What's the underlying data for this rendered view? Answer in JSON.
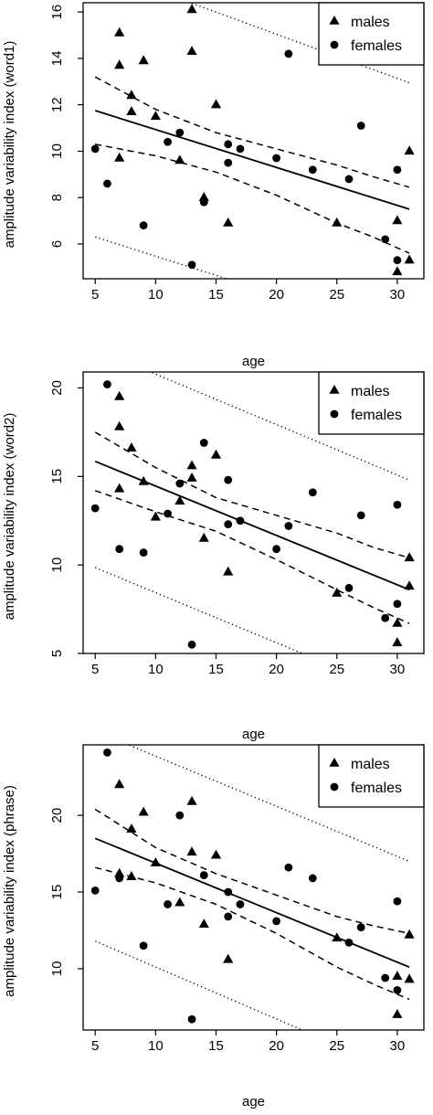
{
  "chart_data": [
    {
      "type": "scatter",
      "panel": "word1",
      "xlabel": "age",
      "ylabel": "amplitude variability index (word1)",
      "xlim": [
        4.0,
        32.2
      ],
      "ylim": [
        4.5,
        16.4
      ],
      "x_ticks": [
        5,
        10,
        15,
        20,
        25,
        30
      ],
      "y_ticks": [
        6,
        8,
        10,
        12,
        14,
        16
      ],
      "legend": {
        "position": "top-right",
        "entries": [
          "males",
          "females"
        ]
      },
      "series": [
        {
          "name": "males",
          "marker": "triangle",
          "points": [
            [
              7,
              15.1
            ],
            [
              7,
              13.7
            ],
            [
              7,
              9.7
            ],
            [
              8,
              12.4
            ],
            [
              8,
              11.7
            ],
            [
              9,
              13.9
            ],
            [
              10,
              11.5
            ],
            [
              12,
              9.6
            ],
            [
              13,
              16.1
            ],
            [
              13,
              14.3
            ],
            [
              14,
              8.0
            ],
            [
              15,
              12.0
            ],
            [
              16,
              6.9
            ],
            [
              25,
              6.9
            ],
            [
              30,
              7.0
            ],
            [
              30,
              4.8
            ],
            [
              31,
              10.0
            ],
            [
              31,
              5.3
            ]
          ]
        },
        {
          "name": "females",
          "marker": "circle",
          "points": [
            [
              5,
              10.1
            ],
            [
              6,
              8.6
            ],
            [
              9,
              6.8
            ],
            [
              11,
              10.4
            ],
            [
              12,
              10.8
            ],
            [
              13,
              5.1
            ],
            [
              14,
              7.8
            ],
            [
              16,
              10.3
            ],
            [
              16,
              9.5
            ],
            [
              17,
              10.1
            ],
            [
              20,
              9.7
            ],
            [
              21,
              14.2
            ],
            [
              23,
              9.2
            ],
            [
              26,
              8.8
            ],
            [
              27,
              11.1
            ],
            [
              29,
              6.2
            ],
            [
              30,
              9.2
            ],
            [
              30,
              5.3
            ]
          ]
        }
      ],
      "fit_line": {
        "x": [
          5,
          31
        ],
        "y": [
          11.75,
          7.5
        ]
      },
      "confidence_band": {
        "x": [
          5,
          10,
          15,
          20,
          25,
          28,
          31
        ],
        "upper": [
          13.2,
          11.8,
          10.8,
          10.1,
          9.4,
          8.9,
          8.45
        ],
        "lower": [
          10.3,
          9.8,
          9.1,
          8.1,
          6.9,
          6.3,
          5.6
        ]
      },
      "prediction_band": {
        "x": [
          5,
          31
        ],
        "upper": [
          17.9,
          12.95
        ],
        "lower": [
          6.3,
          2.0
        ]
      }
    },
    {
      "type": "scatter",
      "panel": "word2",
      "xlabel": "age",
      "ylabel": "amplitude variability index (word2)",
      "xlim": [
        4.0,
        32.2
      ],
      "ylim": [
        5.0,
        20.9
      ],
      "x_ticks": [
        5,
        10,
        15,
        20,
        25,
        30
      ],
      "y_ticks": [
        5,
        10,
        15,
        20
      ],
      "legend": {
        "position": "top-right",
        "entries": [
          "males",
          "females"
        ]
      },
      "series": [
        {
          "name": "males",
          "marker": "triangle",
          "points": [
            [
              7,
              19.5
            ],
            [
              7,
              17.8
            ],
            [
              7,
              14.3
            ],
            [
              8,
              16.6
            ],
            [
              9,
              14.7
            ],
            [
              10,
              12.7
            ],
            [
              12,
              13.6
            ],
            [
              13,
              15.6
            ],
            [
              13,
              14.9
            ],
            [
              14,
              11.5
            ],
            [
              15,
              16.2
            ],
            [
              16,
              9.6
            ],
            [
              25,
              8.4
            ],
            [
              30,
              6.7
            ],
            [
              30,
              5.6
            ],
            [
              31,
              10.4
            ],
            [
              31,
              8.8
            ]
          ]
        },
        {
          "name": "females",
          "marker": "circle",
          "points": [
            [
              5,
              13.2
            ],
            [
              6,
              20.2
            ],
            [
              7,
              10.9
            ],
            [
              9,
              10.7
            ],
            [
              11,
              12.9
            ],
            [
              12,
              14.6
            ],
            [
              13,
              5.5
            ],
            [
              14,
              16.9
            ],
            [
              16,
              14.8
            ],
            [
              16,
              12.3
            ],
            [
              17,
              12.5
            ],
            [
              20,
              10.9
            ],
            [
              21,
              12.2
            ],
            [
              23,
              14.1
            ],
            [
              26,
              8.7
            ],
            [
              27,
              12.8
            ],
            [
              29,
              7.0
            ],
            [
              30,
              13.4
            ],
            [
              30,
              7.8
            ]
          ]
        }
      ],
      "fit_line": {
        "x": [
          5,
          31
        ],
        "y": [
          15.85,
          8.6
        ]
      },
      "confidence_band": {
        "x": [
          5,
          10,
          15,
          20,
          25,
          28,
          31
        ],
        "upper": [
          17.5,
          15.5,
          13.8,
          12.8,
          11.8,
          11.0,
          10.4
        ],
        "lower": [
          14.2,
          13.0,
          11.9,
          10.3,
          8.6,
          7.6,
          6.7
        ]
      },
      "prediction_band": {
        "x": [
          5,
          31
        ],
        "upper": [
          22.2,
          14.8
        ],
        "lower": [
          9.85,
          2.5
        ]
      }
    },
    {
      "type": "scatter",
      "panel": "phrase",
      "xlabel": "age",
      "ylabel": "amplitude variability index (phrase)",
      "xlim": [
        4.0,
        32.2
      ],
      "ylim": [
        6.0,
        24.6
      ],
      "x_ticks": [
        5,
        10,
        15,
        20,
        25,
        30
      ],
      "y_ticks": [
        10,
        15,
        20
      ],
      "legend": {
        "position": "top-right",
        "entries": [
          "males",
          "females"
        ]
      },
      "series": [
        {
          "name": "males",
          "marker": "triangle",
          "points": [
            [
              7,
              22.0
            ],
            [
              7,
              16.2
            ],
            [
              8,
              19.1
            ],
            [
              8,
              16.0
            ],
            [
              9,
              20.2
            ],
            [
              10,
              16.9
            ],
            [
              12,
              14.3
            ],
            [
              13,
              20.9
            ],
            [
              13,
              17.6
            ],
            [
              14,
              12.9
            ],
            [
              15,
              17.4
            ],
            [
              16,
              10.6
            ],
            [
              25,
              12.0
            ],
            [
              30,
              9.5
            ],
            [
              30,
              7.0
            ],
            [
              31,
              12.2
            ],
            [
              31,
              9.3
            ]
          ]
        },
        {
          "name": "females",
          "marker": "circle",
          "points": [
            [
              5,
              15.1
            ],
            [
              6,
              24.1
            ],
            [
              7,
              15.9
            ],
            [
              9,
              11.5
            ],
            [
              11,
              14.2
            ],
            [
              12,
              20.0
            ],
            [
              13,
              6.7
            ],
            [
              14,
              16.1
            ],
            [
              16,
              15.0
            ],
            [
              16,
              13.4
            ],
            [
              17,
              14.2
            ],
            [
              20,
              13.1
            ],
            [
              21,
              16.6
            ],
            [
              23,
              15.9
            ],
            [
              26,
              11.7
            ],
            [
              27,
              12.7
            ],
            [
              29,
              9.4
            ],
            [
              30,
              14.4
            ],
            [
              30,
              8.6
            ]
          ]
        }
      ],
      "fit_line": {
        "x": [
          5,
          31
        ],
        "y": [
          18.5,
          10.1
        ]
      },
      "confidence_band": {
        "x": [
          5,
          10,
          15,
          20,
          25,
          28,
          31
        ],
        "upper": [
          20.4,
          17.9,
          16.2,
          14.8,
          13.4,
          12.8,
          12.3
        ],
        "lower": [
          16.6,
          15.6,
          14.2,
          12.3,
          10.1,
          9.0,
          8.0
        ]
      },
      "prediction_band": {
        "x": [
          5,
          31
        ],
        "upper": [
          25.5,
          17.0
        ],
        "lower": [
          11.8,
          3.0
        ]
      }
    }
  ]
}
